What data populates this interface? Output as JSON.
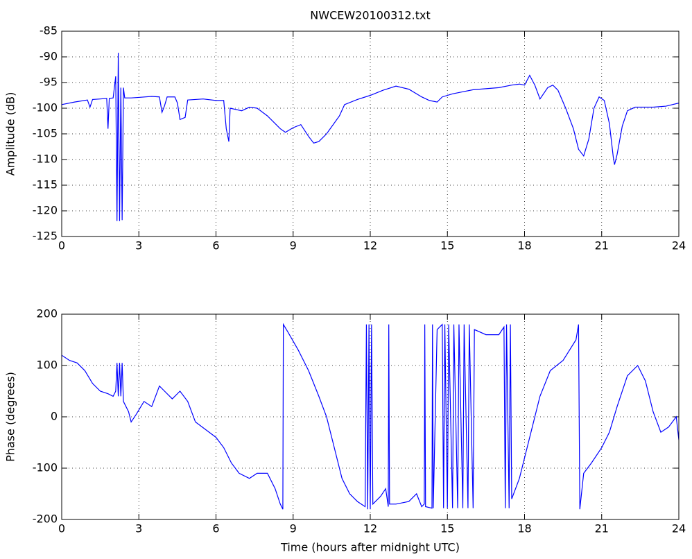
{
  "chart_data": [
    {
      "type": "line",
      "title": "NWCEW20100312.txt",
      "y_label": "Amplitude (dB)",
      "xlim": [
        0,
        24
      ],
      "xticks": [
        0,
        3,
        6,
        9,
        12,
        15,
        18,
        21,
        24
      ],
      "ylim": [
        -125,
        -85
      ],
      "yticks": [
        -125,
        -120,
        -115,
        -110,
        -105,
        -100,
        -95,
        -90,
        -85
      ],
      "grid": true,
      "x": [
        0,
        0.5,
        1.0,
        1.1,
        1.2,
        1.5,
        1.75,
        1.8,
        1.85,
        2.0,
        2.1,
        2.15,
        2.2,
        2.25,
        2.3,
        2.35,
        2.4,
        2.45,
        2.7,
        3.0,
        3.5,
        3.8,
        3.9,
        4.0,
        4.1,
        4.4,
        4.5,
        4.6,
        4.8,
        4.9,
        5.5,
        6.0,
        6.3,
        6.4,
        6.5,
        6.55,
        7.0,
        7.3,
        7.6,
        8.0,
        8.5,
        8.7,
        9.0,
        9.3,
        9.6,
        9.8,
        10.0,
        10.3,
        10.8,
        11.0,
        11.5,
        12.0,
        12.5,
        13.0,
        13.5,
        14.0,
        14.3,
        14.6,
        14.8,
        15.2,
        15.6,
        16.0,
        16.5,
        17.0,
        17.5,
        17.8,
        18.0,
        18.2,
        18.4,
        18.6,
        18.9,
        19.1,
        19.3,
        19.6,
        19.9,
        20.1,
        20.3,
        20.5,
        20.7,
        20.9,
        21.1,
        21.3,
        21.45,
        21.5,
        21.6,
        21.8,
        22.0,
        22.3,
        23.0,
        23.5,
        24.0
      ],
      "series": [
        {
          "color": "#0000ff",
          "values": [
            -99.3,
            -98.8,
            -98.4,
            -99.8,
            -98.3,
            -98.2,
            -98.1,
            -104,
            -98.1,
            -98,
            -93.8,
            -122,
            -89.2,
            -122,
            -96,
            -121.8,
            -96,
            -98,
            -98,
            -97.9,
            -97.7,
            -97.8,
            -100.8,
            -99.5,
            -97.8,
            -97.8,
            -99,
            -102.2,
            -101.8,
            -98.4,
            -98.2,
            -98.5,
            -98.5,
            -104,
            -106.5,
            -100,
            -100.5,
            -99.8,
            -100,
            -101.5,
            -104,
            -104.7,
            -103.8,
            -103.2,
            -105.5,
            -106.8,
            -106.5,
            -105,
            -101.5,
            -99.3,
            -98.3,
            -97.5,
            -96.5,
            -95.7,
            -96.3,
            -97.8,
            -98.5,
            -98.8,
            -97.8,
            -97.2,
            -96.8,
            -96.4,
            -96.2,
            -96,
            -95.5,
            -95.3,
            -95.5,
            -93.6,
            -95.5,
            -98.2,
            -96,
            -95.5,
            -96.5,
            -100,
            -104,
            -108,
            -109.3,
            -106,
            -100,
            -97.8,
            -98.5,
            -103,
            -109.5,
            -111,
            -109,
            -103.5,
            -100.5,
            -99.8,
            -99.8,
            -99.6,
            -99
          ]
        }
      ]
    },
    {
      "type": "line",
      "x_label": "Time (hours after midnight UTC)",
      "y_label": "Phase (degrees)",
      "xlim": [
        0,
        24
      ],
      "xticks": [
        0,
        3,
        6,
        9,
        12,
        15,
        18,
        21,
        24
      ],
      "ylim": [
        -200,
        200
      ],
      "yticks": [
        -200,
        -100,
        0,
        100,
        200
      ],
      "grid": true,
      "x": [
        0,
        0.3,
        0.6,
        0.9,
        1.2,
        1.5,
        1.8,
        2.0,
        2.1,
        2.15,
        2.2,
        2.25,
        2.3,
        2.35,
        2.4,
        2.6,
        2.7,
        2.9,
        3.2,
        3.5,
        3.8,
        4.0,
        4.3,
        4.6,
        4.9,
        5.2,
        5.6,
        6.0,
        6.3,
        6.6,
        6.9,
        7.3,
        7.6,
        8.0,
        8.3,
        8.5,
        8.6,
        8.62,
        8.8,
        9.2,
        9.6,
        10.0,
        10.3,
        10.6,
        10.9,
        11.2,
        11.5,
        11.8,
        11.85,
        11.9,
        11.95,
        12.0,
        12.05,
        12.1,
        12.4,
        12.6,
        12.7,
        12.72,
        12.75,
        13.0,
        13.5,
        13.8,
        14.0,
        14.1,
        14.12,
        14.15,
        14.4,
        14.42,
        14.45,
        14.6,
        14.8,
        14.85,
        14.9,
        15.0,
        15.05,
        15.2,
        15.25,
        15.4,
        15.45,
        15.6,
        15.65,
        15.8,
        15.85,
        16.0,
        16.05,
        16.5,
        17.0,
        17.2,
        17.25,
        17.3,
        17.4,
        17.45,
        17.5,
        17.8,
        18.0,
        18.3,
        18.6,
        19.0,
        19.5,
        20.0,
        20.1,
        20.15,
        20.3,
        20.6,
        21.0,
        21.3,
        21.6,
        22.0,
        22.4,
        22.7,
        23.0,
        23.3,
        23.6,
        23.9,
        24.0
      ],
      "series": [
        {
          "color": "#0000ff",
          "values": [
            120,
            110,
            105,
            90,
            65,
            50,
            45,
            40,
            50,
            105,
            40,
            105,
            40,
            105,
            30,
            10,
            -10,
            5,
            30,
            20,
            60,
            50,
            35,
            50,
            30,
            -10,
            -25,
            -40,
            -60,
            -90,
            -110,
            -120,
            -110,
            -110,
            -140,
            -170,
            -180,
            180,
            165,
            130,
            90,
            40,
            0,
            -60,
            -120,
            -150,
            -165,
            -175,
            180,
            -180,
            180,
            -180,
            180,
            -170,
            -155,
            -140,
            -175,
            180,
            -170,
            -170,
            -165,
            -150,
            -175,
            -170,
            180,
            -175,
            -178,
            180,
            -178,
            170,
            180,
            -178,
            180,
            -178,
            180,
            -178,
            180,
            -178,
            180,
            -178,
            180,
            -178,
            180,
            -178,
            170,
            160,
            160,
            175,
            -178,
            180,
            -178,
            180,
            -160,
            -120,
            -80,
            -20,
            40,
            90,
            110,
            150,
            180,
            -180,
            -110,
            -90,
            -60,
            -30,
            20,
            80,
            100,
            70,
            10,
            -30,
            -20,
            0,
            -45
          ]
        }
      ]
    }
  ]
}
